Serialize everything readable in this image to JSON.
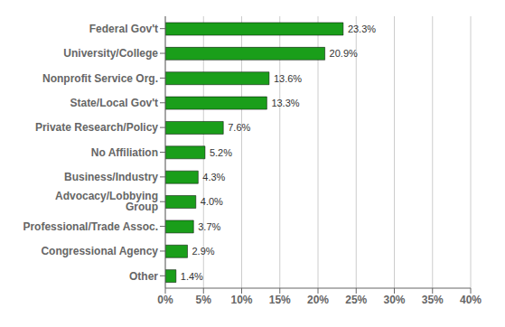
{
  "chart_data": {
    "type": "bar",
    "orientation": "horizontal",
    "categories": [
      "Other",
      "Congressional Agency",
      "Professional/Trade Assoc.",
      "Advocacy/Lobbying Group",
      "Business/Industry",
      "No Affiliation",
      "Private Research/Policy",
      "State/Local Gov't",
      "Nonprofit Service Org.",
      "University/College",
      "Federal Gov't"
    ],
    "values": [
      1.4,
      2.9,
      3.7,
      4.0,
      4.3,
      5.2,
      7.6,
      13.3,
      13.6,
      20.9,
      23.3
    ],
    "value_labels": [
      "1.4%",
      "2.9%",
      "3.7%",
      "4.0%",
      "4.3%",
      "5.2%",
      "7.6%",
      "13.3%",
      "13.6%",
      "20.9%",
      "23.3%"
    ],
    "data_labels": true,
    "color": "#1a9e1a",
    "xlim": [
      0,
      40
    ],
    "xticks": [
      {
        "value": 0,
        "label": "0%"
      },
      {
        "value": 5,
        "label": "5%"
      },
      {
        "value": 10,
        "label": "10%"
      },
      {
        "value": 15,
        "label": "15%"
      },
      {
        "value": 20,
        "label": "20%"
      },
      {
        "value": 25,
        "label": "25%"
      },
      {
        "value": 30,
        "label": "30%"
      },
      {
        "value": 35,
        "label": "35%"
      },
      {
        "value": 40,
        "label": "40%"
      }
    ],
    "grid": true
  }
}
